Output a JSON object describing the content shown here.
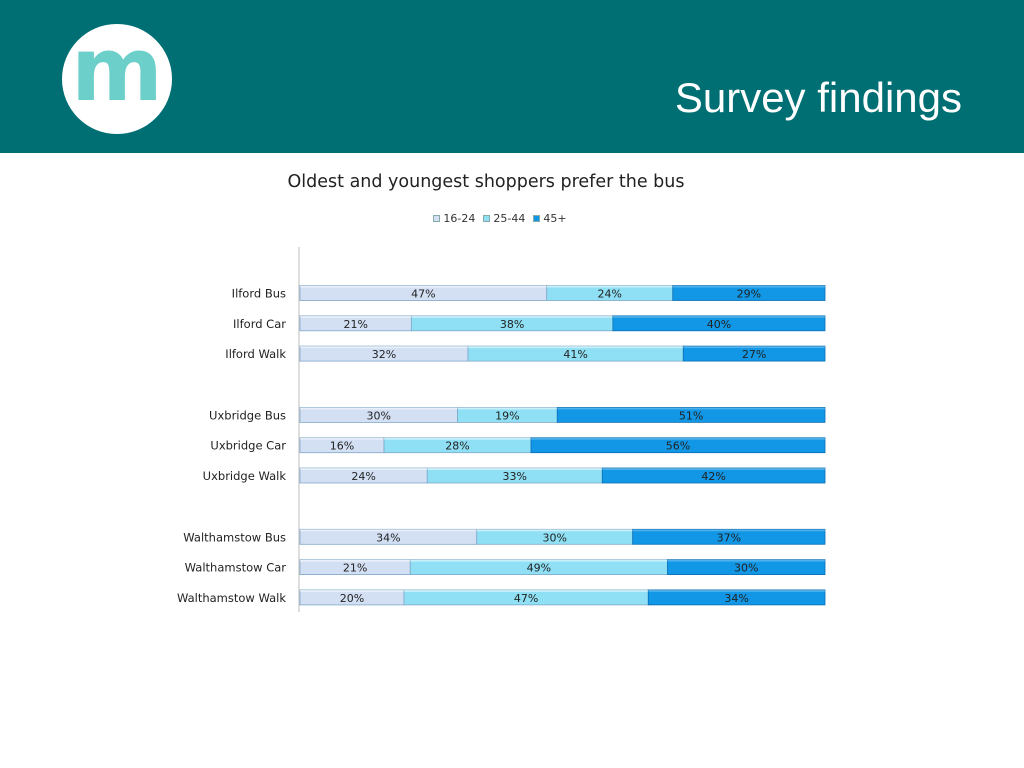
{
  "header": {
    "title": "Survey findings",
    "logo_letter": "m",
    "background_color": "#006f73",
    "logo_color": "#6ccfc9"
  },
  "chart_data": {
    "type": "bar",
    "orientation": "horizontal",
    "stacked": true,
    "percent": true,
    "title": "Oldest and youngest shoppers prefer the bus",
    "legend_position": "top",
    "categories": [
      "Ilford Bus",
      "Ilford Car",
      "Ilford Walk",
      "Uxbridge Bus",
      "Uxbridge Car",
      "Uxbridge Walk",
      "Walthamstow Bus",
      "Walthamstow Car",
      "Walthamstow Walk"
    ],
    "groups": [
      [
        "Ilford Bus",
        "Ilford Car",
        "Ilford Walk"
      ],
      [
        "Uxbridge Bus",
        "Uxbridge Car",
        "Uxbridge Walk"
      ],
      [
        "Walthamstow Bus",
        "Walthamstow Car",
        "Walthamstow Walk"
      ]
    ],
    "series": [
      {
        "name": "16-24",
        "color": "#d3e0f4",
        "values": [
          47,
          21,
          32,
          30,
          16,
          24,
          34,
          21,
          20
        ]
      },
      {
        "name": "25-44",
        "color": "#8fe0f4",
        "values": [
          24,
          38,
          41,
          19,
          28,
          33,
          30,
          49,
          47
        ]
      },
      {
        "name": "45+",
        "color": "#1197e6",
        "values": [
          29,
          40,
          27,
          51,
          56,
          42,
          37,
          30,
          34
        ]
      }
    ],
    "data_labels": [
      [
        "47%",
        "21%",
        "32%",
        "30%",
        "16%",
        "24%",
        "34%",
        "21%",
        "20%"
      ],
      [
        "24%",
        "38%",
        "41%",
        "19%",
        "28%",
        "33%",
        "30%",
        "49%",
        "47%"
      ],
      [
        "29%",
        "40%",
        "27%",
        "51%",
        "56%",
        "42%",
        "37%",
        "30%",
        "34%"
      ]
    ],
    "grid": false
  }
}
